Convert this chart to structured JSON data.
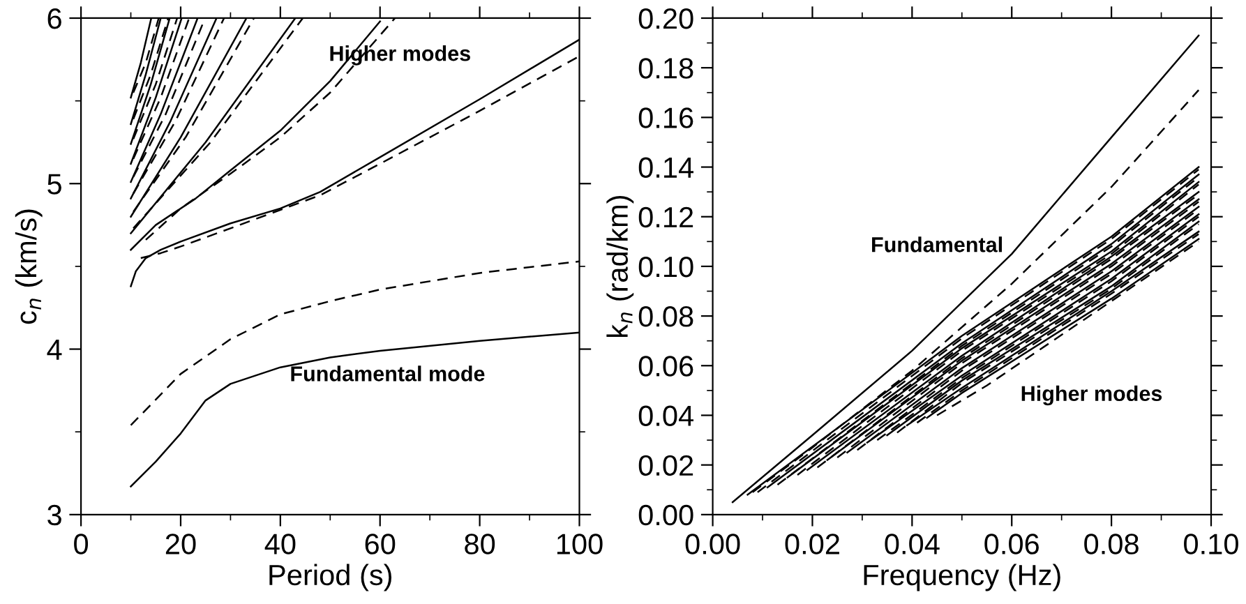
{
  "chart_data": [
    {
      "type": "line",
      "xlabel": "Period (s)",
      "ylabel": "c$_{n}$ (km/s)",
      "xlim": [
        0,
        100
      ],
      "ylim": [
        3,
        6
      ],
      "xticks": [
        0,
        20,
        40,
        60,
        80,
        100
      ],
      "yticks": [
        3,
        4,
        5,
        6
      ],
      "annotations": [
        "Higher modes",
        "Fundamental mode"
      ],
      "series": [
        {
          "color": "#000000",
          "line_style": "solid",
          "x": [
            10,
            15,
            20,
            25,
            30,
            40,
            50,
            60,
            80,
            100
          ],
          "values": [
            3.17,
            3.32,
            3.49,
            3.69,
            3.79,
            3.89,
            3.95,
            3.99,
            4.05,
            4.1
          ]
        },
        {
          "color": "#000000",
          "line_style": "dashed",
          "x": [
            10,
            20,
            30,
            40,
            50,
            60,
            80,
            100
          ],
          "values": [
            3.54,
            3.85,
            4.06,
            4.21,
            4.29,
            4.36,
            4.46,
            4.53
          ]
        },
        {
          "color": "#000000",
          "line_style": "solid",
          "x": [
            10,
            11,
            13,
            16,
            20,
            30,
            40,
            48,
            60,
            80,
            100
          ],
          "values": [
            4.38,
            4.47,
            4.55,
            4.6,
            4.65,
            4.76,
            4.85,
            4.95,
            5.16,
            5.51,
            5.87
          ]
        },
        {
          "color": "#000000",
          "line_style": "dashed",
          "x": [
            12,
            16,
            20,
            30,
            48,
            60,
            80,
            100
          ],
          "values": [
            4.55,
            4.58,
            4.62,
            4.73,
            4.93,
            5.12,
            5.44,
            5.77
          ]
        },
        {
          "color": "#000000",
          "line_style": "solid",
          "x": [
            10,
            15,
            23,
            30,
            40,
            50,
            60
          ],
          "values": [
            4.6,
            4.75,
            4.91,
            5.08,
            5.32,
            5.62,
            5.98
          ]
        },
        {
          "color": "#000000",
          "line_style": "dashed",
          "x": [
            13,
            20,
            30,
            40,
            50,
            63
          ],
          "values": [
            4.66,
            4.85,
            5.06,
            5.28,
            5.55,
            6.0
          ]
        },
        {
          "color": "#000000",
          "line_style": "solid",
          "x": [
            10,
            25,
            43
          ],
          "values": [
            4.7,
            5.25,
            6.0
          ]
        },
        {
          "color": "#000000",
          "line_style": "dashed",
          "x": [
            10.5,
            26,
            44.5
          ],
          "values": [
            4.73,
            5.25,
            6.0
          ]
        },
        {
          "color": "#000000",
          "line_style": "solid",
          "x": [
            10,
            20,
            33.2
          ],
          "values": [
            4.8,
            5.28,
            6.0
          ]
        },
        {
          "color": "#000000",
          "line_style": "dashed",
          "x": [
            10.5,
            21,
            34.7
          ],
          "values": [
            4.83,
            5.28,
            6.0
          ]
        },
        {
          "color": "#000000",
          "line_style": "solid",
          "x": [
            10,
            18,
            27.2
          ],
          "values": [
            4.91,
            5.38,
            6.0
          ]
        },
        {
          "color": "#000000",
          "line_style": "dashed",
          "x": [
            10.5,
            19,
            28.7
          ],
          "values": [
            4.94,
            5.38,
            6.0
          ]
        },
        {
          "color": "#000000",
          "line_style": "solid",
          "x": [
            10,
            16,
            23.4
          ],
          "values": [
            5.01,
            5.42,
            6.0
          ]
        },
        {
          "color": "#000000",
          "line_style": "dashed",
          "x": [
            10.5,
            17,
            24.9
          ],
          "values": [
            5.04,
            5.42,
            6.0
          ]
        },
        {
          "color": "#000000",
          "line_style": "solid",
          "x": [
            10,
            15,
            20.2
          ],
          "values": [
            5.12,
            5.52,
            6.0
          ]
        },
        {
          "color": "#000000",
          "line_style": "dashed",
          "x": [
            10.5,
            16,
            21.7
          ],
          "values": [
            5.15,
            5.52,
            6.0
          ]
        },
        {
          "color": "#000000",
          "line_style": "solid",
          "x": [
            10,
            14,
            17.8
          ],
          "values": [
            5.24,
            5.6,
            6.0
          ]
        },
        {
          "color": "#000000",
          "line_style": "dashed",
          "x": [
            10.5,
            15,
            19.3
          ],
          "values": [
            5.27,
            5.6,
            6.0
          ]
        },
        {
          "color": "#000000",
          "line_style": "solid",
          "x": [
            10,
            13,
            16
          ],
          "values": [
            5.36,
            5.66,
            6.0
          ]
        },
        {
          "color": "#000000",
          "line_style": "dashed",
          "x": [
            10.5,
            14,
            17.5
          ],
          "values": [
            5.39,
            5.66,
            6.0
          ]
        },
        {
          "color": "#000000",
          "line_style": "solid",
          "x": [
            10,
            12,
            14.1
          ],
          "values": [
            5.52,
            5.73,
            6.0
          ]
        },
        {
          "color": "#000000",
          "line_style": "dashed",
          "x": [
            10.5,
            13,
            15.6
          ],
          "values": [
            5.55,
            5.73,
            6.0
          ]
        }
      ]
    },
    {
      "type": "line",
      "xlabel": "Frequency (Hz)",
      "ylabel": "k$_{n}$ (rad/km)",
      "xlim": [
        0,
        0.1
      ],
      "ylim": [
        0,
        0.2
      ],
      "xticks": [
        {
          "value": 0,
          "label": "0.00"
        },
        {
          "value": 0.02,
          "label": "0.02"
        },
        {
          "value": 0.04,
          "label": "0.04"
        },
        {
          "value": 0.06,
          "label": "0.06"
        },
        {
          "value": 0.08,
          "label": "0.08"
        },
        {
          "value": 0.1,
          "label": "0.10"
        }
      ],
      "yticks": [
        {
          "value": 0,
          "label": "0.00"
        },
        {
          "value": 0.02,
          "label": "0.02"
        },
        {
          "value": 0.04,
          "label": "0.04"
        },
        {
          "value": 0.06,
          "label": "0.06"
        },
        {
          "value": 0.08,
          "label": "0.08"
        },
        {
          "value": 0.1,
          "label": "0.10"
        },
        {
          "value": 0.12,
          "label": "0.12"
        },
        {
          "value": 0.14,
          "label": "0.14"
        },
        {
          "value": 0.16,
          "label": "0.16"
        },
        {
          "value": 0.18,
          "label": "0.18"
        },
        {
          "value": 0.2,
          "label": "0.20"
        }
      ],
      "annotations": [
        "Fundamental",
        "Higher modes"
      ],
      "series": [
        {
          "color": "#000000",
          "line_style": "solid",
          "x": [
            0.004,
            0.02,
            0.04,
            0.06,
            0.08,
            0.0975
          ],
          "values": [
            0.005,
            0.032,
            0.066,
            0.105,
            0.152,
            0.193
          ]
        },
        {
          "color": "#000000",
          "line_style": "dashed",
          "x": [
            0.008,
            0.02,
            0.04,
            0.06,
            0.08,
            0.0975
          ],
          "values": [
            0.009,
            0.027,
            0.058,
            0.093,
            0.132,
            0.171
          ]
        },
        {
          "color": "#000000",
          "line_style": "solid",
          "x": [
            0.007,
            0.05,
            0.08,
            0.0975
          ],
          "values": [
            0.008,
            0.072,
            0.112,
            0.14
          ]
        },
        {
          "color": "#000000",
          "line_style": "dashed",
          "x": [
            0.009,
            0.05,
            0.08,
            0.0975
          ],
          "values": [
            0.009,
            0.071,
            0.111,
            0.139
          ]
        },
        {
          "color": "#000000",
          "line_style": "solid",
          "x": [
            0.011,
            0.05,
            0.08,
            0.0975
          ],
          "values": [
            0.011,
            0.069,
            0.109,
            0.137
          ]
        },
        {
          "color": "#000000",
          "line_style": "dashed",
          "x": [
            0.013,
            0.05,
            0.08,
            0.0975
          ],
          "values": [
            0.012,
            0.068,
            0.108,
            0.136
          ]
        },
        {
          "color": "#000000",
          "line_style": "solid",
          "x": [
            0.015,
            0.05,
            0.08,
            0.0975
          ],
          "values": [
            0.015,
            0.067,
            0.106,
            0.134
          ]
        },
        {
          "color": "#000000",
          "line_style": "dashed",
          "x": [
            0.017,
            0.05,
            0.08,
            0.0975
          ],
          "values": [
            0.016,
            0.066,
            0.105,
            0.133
          ]
        },
        {
          "color": "#000000",
          "line_style": "solid",
          "x": [
            0.019,
            0.05,
            0.08,
            0.0975
          ],
          "values": [
            0.018,
            0.064,
            0.104,
            0.13
          ]
        },
        {
          "color": "#000000",
          "line_style": "dashed",
          "x": [
            0.021,
            0.05,
            0.08,
            0.0975
          ],
          "values": [
            0.019,
            0.063,
            0.103,
            0.129
          ]
        },
        {
          "color": "#000000",
          "line_style": "solid",
          "x": [
            0.023,
            0.05,
            0.08,
            0.0975
          ],
          "values": [
            0.022,
            0.062,
            0.101,
            0.127
          ]
        },
        {
          "color": "#000000",
          "line_style": "dashed",
          "x": [
            0.025,
            0.05,
            0.08,
            0.0975
          ],
          "values": [
            0.023,
            0.061,
            0.1,
            0.126
          ]
        },
        {
          "color": "#000000",
          "line_style": "solid",
          "x": [
            0.027,
            0.05,
            0.08,
            0.0975
          ],
          "values": [
            0.025,
            0.059,
            0.098,
            0.124
          ]
        },
        {
          "color": "#000000",
          "line_style": "dashed",
          "x": [
            0.029,
            0.05,
            0.08,
            0.0975
          ],
          "values": [
            0.026,
            0.058,
            0.097,
            0.123
          ]
        },
        {
          "color": "#000000",
          "line_style": "solid",
          "x": [
            0.031,
            0.05,
            0.08,
            0.0975
          ],
          "values": [
            0.029,
            0.056,
            0.095,
            0.121
          ]
        },
        {
          "color": "#000000",
          "line_style": "dashed",
          "x": [
            0.033,
            0.05,
            0.08,
            0.0975
          ],
          "values": [
            0.03,
            0.055,
            0.094,
            0.12
          ]
        },
        {
          "color": "#000000",
          "line_style": "solid",
          "x": [
            0.035,
            0.05,
            0.08,
            0.0975
          ],
          "values": [
            0.032,
            0.054,
            0.092,
            0.118
          ]
        },
        {
          "color": "#000000",
          "line_style": "dashed",
          "x": [
            0.037,
            0.05,
            0.08,
            0.0975
          ],
          "values": [
            0.033,
            0.053,
            0.091,
            0.117
          ]
        },
        {
          "color": "#000000",
          "line_style": "solid",
          "x": [
            0.039,
            0.05,
            0.08,
            0.0975
          ],
          "values": [
            0.036,
            0.051,
            0.09,
            0.114
          ]
        },
        {
          "color": "#000000",
          "line_style": "dashed",
          "x": [
            0.041,
            0.05,
            0.08,
            0.0975
          ],
          "values": [
            0.037,
            0.05,
            0.089,
            0.113
          ]
        },
        {
          "color": "#000000",
          "line_style": "solid",
          "x": [
            0.043,
            0.05,
            0.08,
            0.0975
          ],
          "values": [
            0.039,
            0.049,
            0.087,
            0.111
          ]
        },
        {
          "color": "#000000",
          "line_style": "dashed",
          "x": [
            0.045,
            0.055,
            0.08,
            0.0975
          ],
          "values": [
            0.04,
            0.052,
            0.086,
            0.11
          ]
        }
      ]
    }
  ]
}
